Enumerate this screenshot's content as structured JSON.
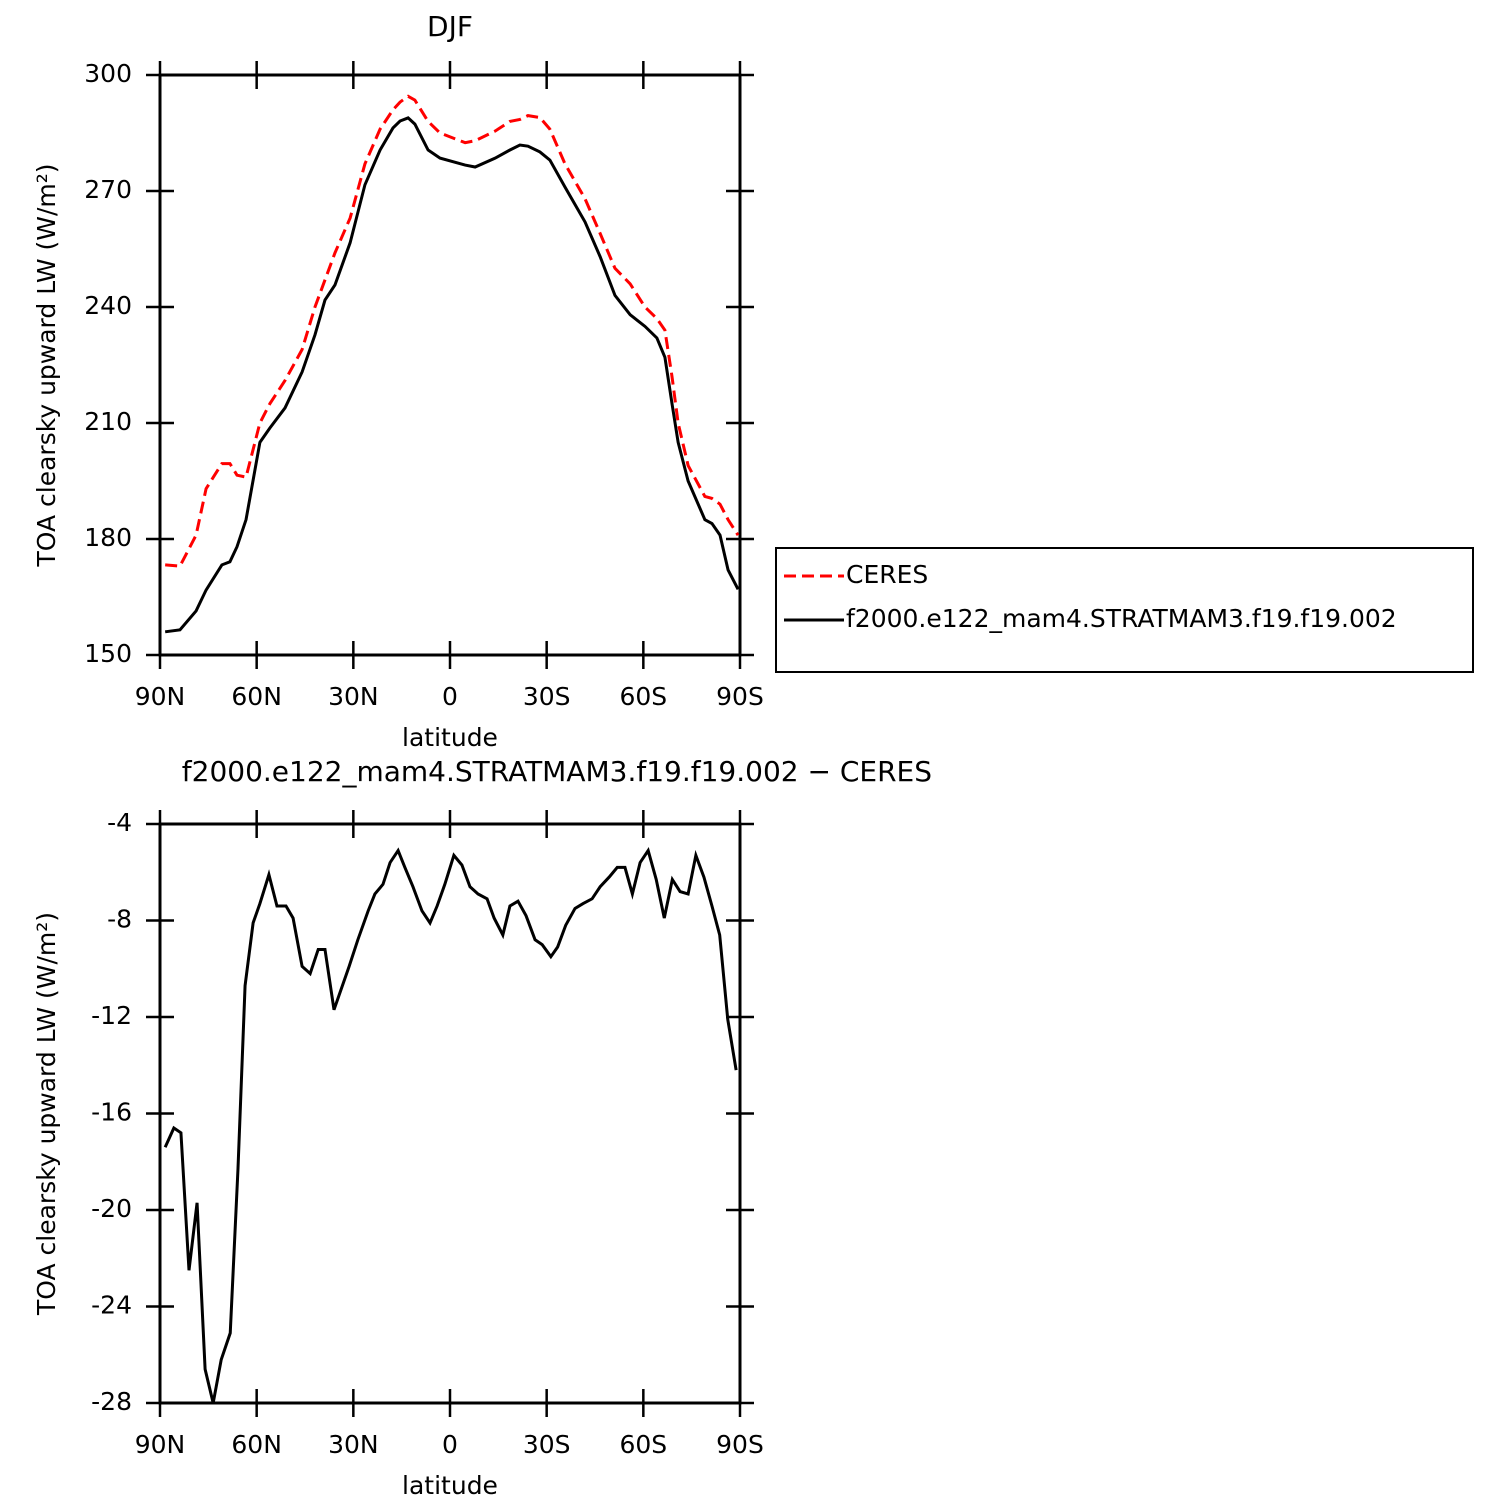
{
  "chart_data": [
    {
      "type": "line",
      "title": "DJF",
      "xlabel": "latitude",
      "ylabel": "TOA clearsky upward LW (W/m²)",
      "x": [
        88.4,
        83.8,
        78.8,
        75.7,
        70.8,
        68.3,
        66.1,
        63.3,
        59.0,
        55.9,
        51.2,
        45.9,
        41.9,
        38.8,
        35.7,
        31.0,
        26.4,
        21.7,
        17.7,
        15.5,
        13.0,
        10.9,
        6.8,
        3.1,
        -4.7,
        -7.8,
        -14.0,
        -18.6,
        -21.7,
        -24.2,
        -27.9,
        -31.0,
        -35.7,
        -41.9,
        -46.6,
        -51.2,
        -55.9,
        -60.5,
        -64.2,
        -66.7,
        -68.9,
        -70.8,
        -73.9,
        -79.1,
        -81.3,
        -83.8,
        -86.3,
        -89.4
      ],
      "series": [
        {
          "name": "CERES",
          "color": "#ff0000",
          "line_style": "dashed",
          "values": [
            173.3,
            173,
            181,
            193,
            199.5,
            199.5,
            196.5,
            196,
            210,
            215,
            221,
            229,
            240,
            247,
            254,
            263,
            277,
            286,
            291,
            293,
            294.5,
            293.5,
            288,
            285,
            282.5,
            283,
            285.5,
            288,
            288.5,
            289.5,
            289,
            286,
            277,
            268,
            259,
            250,
            246,
            240,
            237,
            234,
            222,
            210,
            199,
            191,
            190.5,
            189,
            185,
            181
          ]
        },
        {
          "name": "f2000.e122_mam4.STRATMAM3.f19.f19.002",
          "color": "#000000",
          "line_style": "solid",
          "values": [
            156,
            156.5,
            161.4,
            166.8,
            173.3,
            174.1,
            178,
            185,
            205,
            208.7,
            213.9,
            223.2,
            232.8,
            241.8,
            245.7,
            256.6,
            271.6,
            280.6,
            286.3,
            288.1,
            288.9,
            287.3,
            280.6,
            278.5,
            276.7,
            276.2,
            278.5,
            280.6,
            281.9,
            281.6,
            280.1,
            278,
            271,
            262,
            253,
            243,
            238,
            235,
            232,
            227,
            215,
            205,
            195,
            185,
            184,
            181,
            172,
            167
          ]
        }
      ],
      "xlim": [
        90,
        -90
      ],
      "xticks": [
        {
          "value": 90,
          "label": "90N"
        },
        {
          "value": 60,
          "label": "60N"
        },
        {
          "value": 30,
          "label": "30N"
        },
        0,
        {
          "value": -30,
          "label": "30S"
        },
        {
          "value": -60,
          "label": "60S"
        },
        {
          "value": -90,
          "label": "90S"
        }
      ],
      "ylim": [
        150,
        300
      ],
      "yticks": [
        150,
        180,
        210,
        240,
        270,
        300
      ],
      "legend": "outside-right"
    },
    {
      "type": "line",
      "title": "f2000.e122_mam4.STRATMAM3.f19.f19.002 − CERES",
      "xlabel": "latitude",
      "ylabel": "TOA clearsky upward LW (W/m²)",
      "x": [
        88.4,
        85.7,
        83.5,
        81.0,
        78.5,
        76.0,
        73.5,
        71.0,
        68.2,
        65.8,
        63.6,
        61.1,
        59.0,
        56.2,
        53.7,
        50.9,
        48.7,
        45.9,
        43.4,
        40.9,
        38.8,
        36.0,
        31.3,
        28.6,
        25.4,
        23.3,
        20.8,
        18.6,
        16.1,
        14.0,
        11.5,
        8.7,
        6.2,
        4.0,
        1.6,
        -1.2,
        -3.7,
        -6.2,
        -8.7,
        -11.5,
        -13.7,
        -16.4,
        -18.6,
        -21.1,
        -23.6,
        -26.4,
        -28.6,
        -31.3,
        -33.4,
        -35.9,
        -38.8,
        -41.3,
        -44.1,
        -46.6,
        -49.4,
        -51.9,
        -54.3,
        -56.6,
        -59.0,
        -61.5,
        -64.0,
        -66.5,
        -69.0,
        -71.4,
        -73.9,
        -76.3,
        -78.8,
        -81.3,
        -83.7,
        -86.2,
        -88.8
      ],
      "series": [
        {
          "color": "#000000",
          "line_style": "solid",
          "values": [
            -17.4,
            -16.6,
            -16.8,
            -22.5,
            -19.7,
            -26.6,
            -28.0,
            -26.2,
            -25.1,
            -18.3,
            -10.7,
            -8.1,
            -7.3,
            -6.1,
            -7.4,
            -7.4,
            -7.9,
            -9.9,
            -10.2,
            -9.2,
            -9.2,
            -11.7,
            -9.9,
            -8.8,
            -7.6,
            -6.9,
            -6.5,
            -5.6,
            -5.1,
            -5.8,
            -6.6,
            -7.6,
            -8.1,
            -7.4,
            -6.5,
            -5.3,
            -5.7,
            -6.6,
            -6.9,
            -7.1,
            -7.9,
            -8.6,
            -7.4,
            -7.2,
            -7.8,
            -8.8,
            -9.0,
            -9.5,
            -9.1,
            -8.2,
            -7.5,
            -7.3,
            -7.1,
            -6.6,
            -6.2,
            -5.8,
            -5.8,
            -6.9,
            -5.6,
            -5.1,
            -6.3,
            -7.9,
            -6.3,
            -6.8,
            -6.9,
            -5.3,
            -6.2,
            -7.4,
            -8.6,
            -12.1,
            -14.2
          ]
        }
      ],
      "xlim": [
        90,
        -90
      ],
      "xticks": [
        {
          "value": 90,
          "label": "90N"
        },
        {
          "value": 60,
          "label": "60N"
        },
        {
          "value": 30,
          "label": "30N"
        },
        0,
        {
          "value": -30,
          "label": "30S"
        },
        {
          "value": -60,
          "label": "60S"
        },
        {
          "value": -90,
          "label": "90S"
        }
      ],
      "ylim": [
        -28,
        -4
      ],
      "yticks": [
        -28,
        -24,
        -20,
        -16,
        -12,
        -8,
        -4
      ]
    }
  ]
}
